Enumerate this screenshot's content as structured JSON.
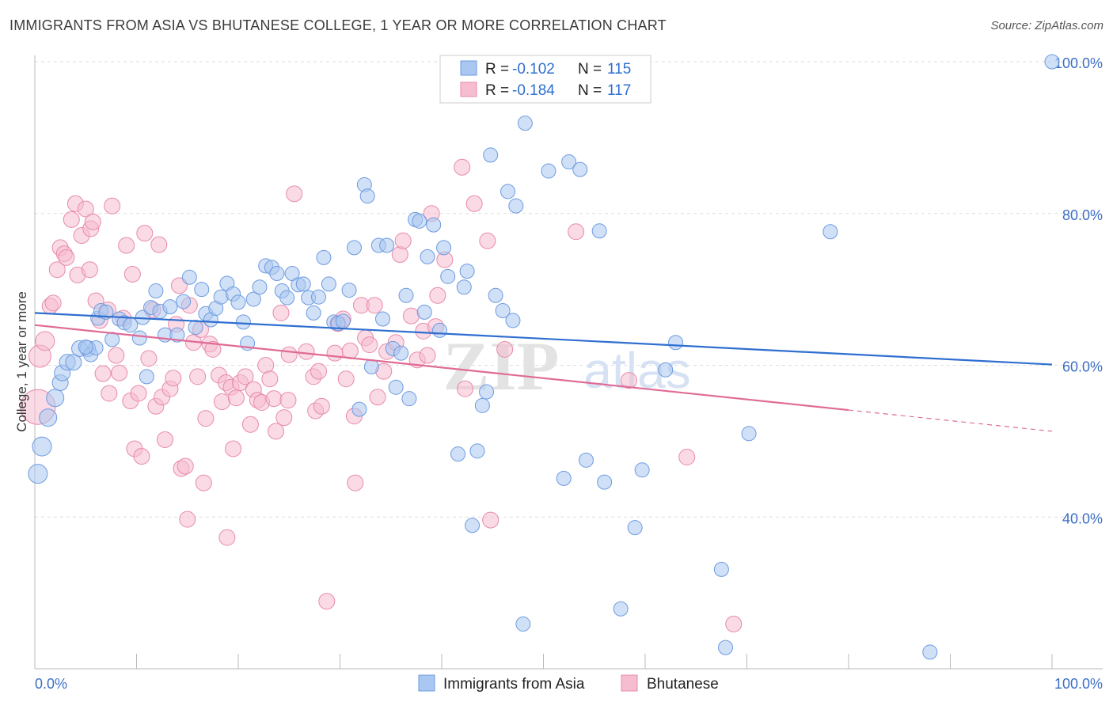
{
  "title": "IMMIGRANTS FROM ASIA VS BHUTANESE COLLEGE, 1 YEAR OR MORE CORRELATION CHART",
  "source": "Source: ZipAtlas.com",
  "watermark": {
    "zip": "ZIP",
    "atlas": "atlas"
  },
  "colors": {
    "blue_fill": "#a9c7f0",
    "blue_stroke": "#6d9be0",
    "blue_line": "#2f6fd0",
    "pink_fill": "#f6bcd0",
    "pink_stroke": "#e88aab",
    "pink_line": "#e06b96",
    "grid": "#dddddd",
    "tick_label": "#3c6fc6"
  },
  "legend_top": {
    "rows": [
      {
        "series": "blue",
        "r_label": "R = ",
        "r_value": "-0.102",
        "n_label": "N = ",
        "n_value": "115"
      },
      {
        "series": "pink",
        "r_label": "R = ",
        "r_value": "-0.184",
        "n_label": "N = ",
        "n_value": "117"
      }
    ]
  },
  "legend_bottom": [
    {
      "series": "blue",
      "label": "Immigrants from Asia"
    },
    {
      "series": "pink",
      "label": "Bhutanese"
    }
  ],
  "chart_data": {
    "type": "scatter",
    "title": "IMMIGRANTS FROM ASIA VS BHUTANESE COLLEGE, 1 YEAR OR MORE CORRELATION CHART",
    "xlabel": "",
    "ylabel": "College, 1 year or more",
    "xlim": [
      0,
      100
    ],
    "ylim": [
      20,
      100
    ],
    "x_tick_labels": [
      "0.0%",
      "100.0%"
    ],
    "y_ticks": [
      40,
      60,
      80,
      100
    ],
    "y_tick_labels": [
      "40.0%",
      "60.0%",
      "80.0%",
      "100.0%"
    ],
    "grid": "horizontal dashed",
    "legend_placement": "top-center, bottom-center",
    "series": [
      {
        "name": "Immigrants from Asia",
        "color": "#a9c7f0",
        "trend": {
          "x": [
            0,
            100
          ],
          "y": [
            66.9,
            60.1
          ]
        },
        "points": [
          [
            0.3,
            45.7,
            12
          ],
          [
            0.7,
            49.3,
            12
          ],
          [
            1.3,
            53.1,
            11
          ],
          [
            2.0,
            55.7,
            11
          ],
          [
            2.5,
            57.7,
            10
          ],
          [
            2.7,
            59.0,
            10
          ],
          [
            3.2,
            60.4,
            10
          ],
          [
            3.8,
            60.4,
            10
          ],
          [
            4.4,
            62.2,
            10
          ],
          [
            5.2,
            62.2,
            10
          ],
          [
            5.5,
            61.4,
            9
          ],
          [
            6.0,
            62.3,
            9
          ],
          [
            6.2,
            66.2,
            9
          ],
          [
            6.5,
            67.2,
            9
          ],
          [
            7.0,
            67.0,
            9
          ],
          [
            7.6,
            63.4,
            9
          ],
          [
            8.3,
            66.1,
            9
          ],
          [
            8.8,
            65.6,
            9
          ],
          [
            9.4,
            65.3,
            9
          ],
          [
            10.3,
            63.6,
            9
          ],
          [
            10.6,
            66.3,
            9
          ],
          [
            11.0,
            58.5,
            9
          ],
          [
            11.4,
            67.6,
            9
          ],
          [
            11.9,
            69.8,
            9
          ],
          [
            12.3,
            67.1,
            9
          ],
          [
            12.8,
            64.0,
            9
          ],
          [
            13.3,
            67.7,
            9
          ],
          [
            14.0,
            64.0,
            9
          ],
          [
            14.6,
            68.4,
            9
          ],
          [
            15.2,
            71.6,
            9
          ],
          [
            15.8,
            65.0,
            9
          ],
          [
            16.4,
            70.0,
            9
          ],
          [
            16.8,
            66.8,
            9
          ],
          [
            17.3,
            66.0,
            9
          ],
          [
            17.8,
            67.5,
            9
          ],
          [
            18.3,
            69.0,
            9
          ],
          [
            18.9,
            70.8,
            9
          ],
          [
            19.5,
            69.4,
            9
          ],
          [
            20.0,
            68.3,
            9
          ],
          [
            20.5,
            65.7,
            9
          ],
          [
            20.9,
            62.9,
            9
          ],
          [
            21.5,
            68.7,
            9
          ],
          [
            22.1,
            70.3,
            9
          ],
          [
            22.7,
            73.1,
            9
          ],
          [
            23.3,
            72.9,
            9
          ],
          [
            23.8,
            72.1,
            9
          ],
          [
            24.3,
            69.8,
            9
          ],
          [
            24.8,
            68.9,
            9
          ],
          [
            25.3,
            72.1,
            9
          ],
          [
            25.9,
            70.6,
            9
          ],
          [
            26.4,
            70.7,
            9
          ],
          [
            26.9,
            68.9,
            9
          ],
          [
            27.4,
            66.9,
            9
          ],
          [
            27.9,
            69.0,
            9
          ],
          [
            28.4,
            74.2,
            9
          ],
          [
            28.9,
            70.7,
            9
          ],
          [
            29.4,
            65.7,
            9
          ],
          [
            29.8,
            65.5,
            9
          ],
          [
            30.3,
            65.8,
            9
          ],
          [
            30.9,
            69.9,
            9
          ],
          [
            31.4,
            75.5,
            9
          ],
          [
            31.9,
            54.2,
            9
          ],
          [
            32.4,
            83.8,
            9
          ],
          [
            32.7,
            82.3,
            9
          ],
          [
            33.1,
            59.8,
            9
          ],
          [
            33.8,
            75.8,
            9
          ],
          [
            34.2,
            66.1,
            9
          ],
          [
            34.6,
            75.8,
            9
          ],
          [
            35.2,
            62.2,
            9
          ],
          [
            35.5,
            57.1,
            9
          ],
          [
            36.0,
            61.6,
            9
          ],
          [
            36.5,
            69.2,
            9
          ],
          [
            36.8,
            55.6,
            9
          ],
          [
            37.4,
            79.2,
            9
          ],
          [
            37.8,
            79.0,
            9
          ],
          [
            38.3,
            67.0,
            9
          ],
          [
            38.6,
            74.3,
            9
          ],
          [
            39.2,
            78.5,
            9
          ],
          [
            39.8,
            64.6,
            9
          ],
          [
            40.2,
            75.5,
            9
          ],
          [
            40.6,
            71.7,
            9
          ],
          [
            41.6,
            48.3,
            9
          ],
          [
            42.2,
            70.3,
            9
          ],
          [
            42.5,
            72.4,
            9
          ],
          [
            43.0,
            38.9,
            9
          ],
          [
            43.5,
            48.7,
            9
          ],
          [
            44.0,
            54.7,
            9
          ],
          [
            44.4,
            56.5,
            9
          ],
          [
            44.8,
            87.7,
            9
          ],
          [
            45.3,
            69.2,
            9
          ],
          [
            46.0,
            67.2,
            9
          ],
          [
            46.5,
            82.9,
            9
          ],
          [
            47.0,
            65.9,
            9
          ],
          [
            47.3,
            81.0,
            9
          ],
          [
            48.2,
            91.9,
            9
          ],
          [
            48.0,
            25.9,
            9
          ],
          [
            50.5,
            85.6,
            9
          ],
          [
            52.0,
            45.1,
            9
          ],
          [
            52.5,
            86.8,
            9
          ],
          [
            53.6,
            85.8,
            9
          ],
          [
            54.2,
            47.5,
            9
          ],
          [
            55.5,
            77.7,
            9
          ],
          [
            56.0,
            44.6,
            9
          ],
          [
            57.6,
            27.9,
            9
          ],
          [
            59.0,
            38.6,
            9
          ],
          [
            59.7,
            46.2,
            9
          ],
          [
            62.0,
            59.4,
            9
          ],
          [
            63.0,
            63.0,
            9
          ],
          [
            67.5,
            33.1,
            9
          ],
          [
            67.9,
            22.8,
            9
          ],
          [
            70.2,
            51.0,
            9
          ],
          [
            78.2,
            77.6,
            9
          ],
          [
            88.0,
            22.2,
            9
          ],
          [
            100.0,
            100.0,
            9
          ],
          [
            5.0,
            62.4,
            9
          ]
        ]
      },
      {
        "name": "Bhutanese",
        "color": "#f6bcd0",
        "trend": {
          "x": [
            0,
            80
          ],
          "y": [
            65.3,
            54.1
          ],
          "dash_x": [
            80,
            100
          ],
          "dash_y": [
            54.1,
            51.3
          ]
        },
        "points": [
          [
            0.3,
            54.5,
            22
          ],
          [
            0.5,
            61.2,
            14
          ],
          [
            1.0,
            63.2,
            12
          ],
          [
            1.5,
            67.8,
            10
          ],
          [
            1.8,
            68.2,
            10
          ],
          [
            2.2,
            72.6,
            10
          ],
          [
            2.5,
            75.5,
            10
          ],
          [
            2.9,
            74.7,
            10
          ],
          [
            3.1,
            74.2,
            10
          ],
          [
            3.6,
            79.2,
            10
          ],
          [
            4.0,
            81.3,
            10
          ],
          [
            4.2,
            71.9,
            10
          ],
          [
            4.6,
            77.1,
            10
          ],
          [
            5.0,
            80.6,
            10
          ],
          [
            5.4,
            72.6,
            10
          ],
          [
            5.5,
            78.0,
            10
          ],
          [
            5.7,
            78.9,
            10
          ],
          [
            6.0,
            68.5,
            10
          ],
          [
            6.4,
            65.9,
            10
          ],
          [
            6.7,
            58.9,
            10
          ],
          [
            7.2,
            67.3,
            10
          ],
          [
            7.3,
            56.3,
            10
          ],
          [
            7.6,
            81.0,
            10
          ],
          [
            8.0,
            61.3,
            10
          ],
          [
            8.3,
            59.0,
            10
          ],
          [
            8.7,
            66.2,
            10
          ],
          [
            9.0,
            75.8,
            10
          ],
          [
            9.4,
            55.3,
            10
          ],
          [
            9.6,
            72.0,
            10
          ],
          [
            9.8,
            49.0,
            10
          ],
          [
            10.2,
            56.3,
            10
          ],
          [
            10.5,
            48.0,
            10
          ],
          [
            10.8,
            77.4,
            10
          ],
          [
            11.2,
            60.9,
            10
          ],
          [
            11.6,
            67.3,
            10
          ],
          [
            11.9,
            54.6,
            10
          ],
          [
            12.2,
            75.9,
            10
          ],
          [
            12.5,
            55.8,
            10
          ],
          [
            12.8,
            50.2,
            10
          ],
          [
            13.3,
            56.9,
            10
          ],
          [
            13.6,
            58.3,
            10
          ],
          [
            13.9,
            65.4,
            10
          ],
          [
            14.2,
            70.5,
            10
          ],
          [
            14.4,
            46.4,
            10
          ],
          [
            14.8,
            46.7,
            10
          ],
          [
            15.0,
            39.7,
            10
          ],
          [
            15.2,
            67.9,
            10
          ],
          [
            15.6,
            63.0,
            10
          ],
          [
            16.0,
            58.5,
            10
          ],
          [
            16.3,
            64.7,
            10
          ],
          [
            16.6,
            44.5,
            10
          ],
          [
            16.8,
            53.0,
            10
          ],
          [
            17.2,
            62.8,
            10
          ],
          [
            17.5,
            62.1,
            10
          ],
          [
            18.1,
            58.7,
            10
          ],
          [
            18.4,
            55.2,
            10
          ],
          [
            18.8,
            57.7,
            10
          ],
          [
            18.9,
            37.3,
            10
          ],
          [
            19.3,
            57.1,
            10
          ],
          [
            19.5,
            49.0,
            10
          ],
          [
            19.8,
            55.7,
            10
          ],
          [
            20.2,
            57.7,
            10
          ],
          [
            20.7,
            58.5,
            10
          ],
          [
            21.2,
            52.2,
            10
          ],
          [
            21.5,
            56.8,
            10
          ],
          [
            21.9,
            55.4,
            10
          ],
          [
            22.3,
            55.1,
            10
          ],
          [
            22.7,
            60.0,
            10
          ],
          [
            23.1,
            58.2,
            10
          ],
          [
            23.5,
            55.6,
            10
          ],
          [
            23.7,
            51.3,
            10
          ],
          [
            24.2,
            66.9,
            10
          ],
          [
            24.5,
            53.1,
            10
          ],
          [
            24.9,
            55.4,
            10
          ],
          [
            25.5,
            82.6,
            10
          ],
          [
            26.7,
            61.8,
            10
          ],
          [
            27.4,
            58.5,
            10
          ],
          [
            27.6,
            54.0,
            10
          ],
          [
            27.9,
            59.2,
            10
          ],
          [
            28.2,
            54.6,
            10
          ],
          [
            28.7,
            28.9,
            10
          ],
          [
            29.5,
            61.6,
            10
          ],
          [
            29.8,
            65.5,
            10
          ],
          [
            30.3,
            66.1,
            10
          ],
          [
            30.6,
            58.2,
            10
          ],
          [
            31.0,
            61.9,
            10
          ],
          [
            31.4,
            53.3,
            10
          ],
          [
            31.5,
            44.5,
            10
          ],
          [
            32.1,
            67.9,
            10
          ],
          [
            32.5,
            63.6,
            10
          ],
          [
            32.9,
            62.7,
            10
          ],
          [
            33.4,
            67.9,
            10
          ],
          [
            33.7,
            55.8,
            10
          ],
          [
            34.3,
            59.2,
            10
          ],
          [
            34.6,
            61.8,
            10
          ],
          [
            35.5,
            63.0,
            10
          ],
          [
            35.9,
            74.6,
            10
          ],
          [
            36.2,
            76.4,
            10
          ],
          [
            37.0,
            66.5,
            10
          ],
          [
            37.6,
            60.7,
            10
          ],
          [
            38.2,
            64.5,
            10
          ],
          [
            38.6,
            61.3,
            10
          ],
          [
            39.0,
            80.0,
            10
          ],
          [
            39.4,
            65.1,
            10
          ],
          [
            39.6,
            69.2,
            10
          ],
          [
            40.3,
            73.9,
            10
          ],
          [
            42.0,
            86.1,
            10
          ],
          [
            42.3,
            56.9,
            10
          ],
          [
            43.2,
            81.3,
            10
          ],
          [
            44.5,
            76.4,
            10
          ],
          [
            44.8,
            39.6,
            10
          ],
          [
            46.2,
            62.1,
            10
          ],
          [
            53.2,
            77.6,
            10
          ],
          [
            58.4,
            58.0,
            10
          ],
          [
            64.1,
            47.9,
            10
          ],
          [
            68.7,
            25.9,
            10
          ],
          [
            25.0,
            61.4,
            10
          ]
        ]
      }
    ]
  }
}
